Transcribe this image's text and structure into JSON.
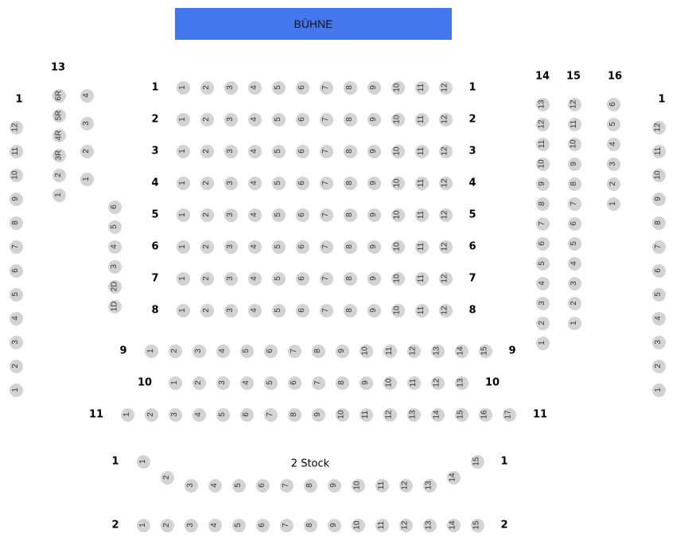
{
  "stage": {
    "label": "BÜHNE",
    "color": "#4477ee"
  },
  "seat_color": "#d3d3d3",
  "parterre": {
    "rows": [
      {
        "label": "1",
        "seats": [
          "1",
          "2",
          "3",
          "4",
          "5",
          "6",
          "7",
          "8",
          "9",
          "10",
          "11",
          "12"
        ]
      },
      {
        "label": "2",
        "seats": [
          "1",
          "2",
          "3",
          "4",
          "5",
          "6",
          "7",
          "8",
          "9",
          "10",
          "11",
          "12"
        ]
      },
      {
        "label": "3",
        "seats": [
          "1",
          "2",
          "3",
          "4",
          "5",
          "6",
          "7",
          "8",
          "9",
          "10",
          "11",
          "12"
        ]
      },
      {
        "label": "4",
        "seats": [
          "1",
          "2",
          "3",
          "4",
          "5",
          "6",
          "7",
          "8",
          "9",
          "10",
          "11",
          "12"
        ]
      },
      {
        "label": "5",
        "seats": [
          "1",
          "2",
          "3",
          "4",
          "5",
          "6",
          "7",
          "8",
          "9",
          "10",
          "11",
          "12"
        ]
      },
      {
        "label": "6",
        "seats": [
          "1",
          "2",
          "3",
          "4",
          "5",
          "6",
          "7",
          "8",
          "9",
          "10",
          "11",
          "12"
        ]
      },
      {
        "label": "7",
        "seats": [
          "1",
          "2",
          "3",
          "4",
          "5",
          "6",
          "7",
          "8",
          "9",
          "10",
          "11",
          "12"
        ]
      },
      {
        "label": "8",
        "seats": [
          "1",
          "2",
          "3",
          "4",
          "5",
          "6",
          "7",
          "8",
          "9",
          "10",
          "11",
          "12"
        ]
      },
      {
        "label": "9",
        "seats": [
          "1",
          "2",
          "3",
          "4",
          "5",
          "6",
          "7",
          "8",
          "9",
          "10",
          "11",
          "12",
          "13",
          "14",
          "15"
        ]
      },
      {
        "label": "10",
        "seats": [
          "1",
          "2",
          "3",
          "4",
          "5",
          "6",
          "7",
          "8",
          "9",
          "10",
          "11",
          "12",
          "13"
        ]
      },
      {
        "label": "11",
        "seats": [
          "1",
          "2",
          "3",
          "4",
          "5",
          "6",
          "7",
          "8",
          "9",
          "10",
          "11",
          "12",
          "13",
          "14",
          "15",
          "16",
          "17"
        ]
      }
    ]
  },
  "left_side": {
    "columns": [
      {
        "label": "1",
        "seats": [
          "12",
          "11",
          "10",
          "9",
          "8",
          "7",
          "6",
          "5",
          "4",
          "3",
          "2",
          "1"
        ]
      },
      {
        "label": "13",
        "seats": [
          "6R",
          "5R",
          "4R",
          "3R",
          "2",
          "1"
        ]
      },
      {
        "label": "",
        "seats": [
          "4",
          "3",
          "2",
          "1"
        ]
      },
      {
        "label": "",
        "seats": [
          "6",
          "5",
          "4",
          "3",
          "2D",
          "1D"
        ]
      }
    ]
  },
  "right_side": {
    "columns": [
      {
        "label": "14",
        "seats": [
          "13",
          "12",
          "11",
          "10",
          "9",
          "8",
          "7",
          "6",
          "5",
          "4",
          "3",
          "2",
          "1"
        ]
      },
      {
        "label": "15",
        "seats": [
          "12",
          "11",
          "10",
          "9",
          "8",
          "7",
          "6",
          "5",
          "4",
          "3",
          "2",
          "1"
        ]
      },
      {
        "label": "16",
        "seats": [
          "6",
          "5",
          "4",
          "3",
          "2",
          "1"
        ]
      },
      {
        "label": "1",
        "seats": [
          "12",
          "11",
          "10",
          "9",
          "8",
          "7",
          "6",
          "5",
          "4",
          "3",
          "2",
          "1"
        ]
      }
    ]
  },
  "stock": {
    "title": "2 Stock",
    "rows": [
      {
        "label": "1",
        "seats": [
          "1",
          "2",
          "3",
          "4",
          "5",
          "6",
          "7",
          "8",
          "9",
          "10",
          "11",
          "12",
          "13",
          "14",
          "15"
        ]
      },
      {
        "label": "2",
        "seats": [
          "1",
          "2",
          "3",
          "4",
          "5",
          "6",
          "7",
          "8",
          "9",
          "10",
          "11",
          "12",
          "13",
          "14",
          "15"
        ]
      }
    ]
  }
}
